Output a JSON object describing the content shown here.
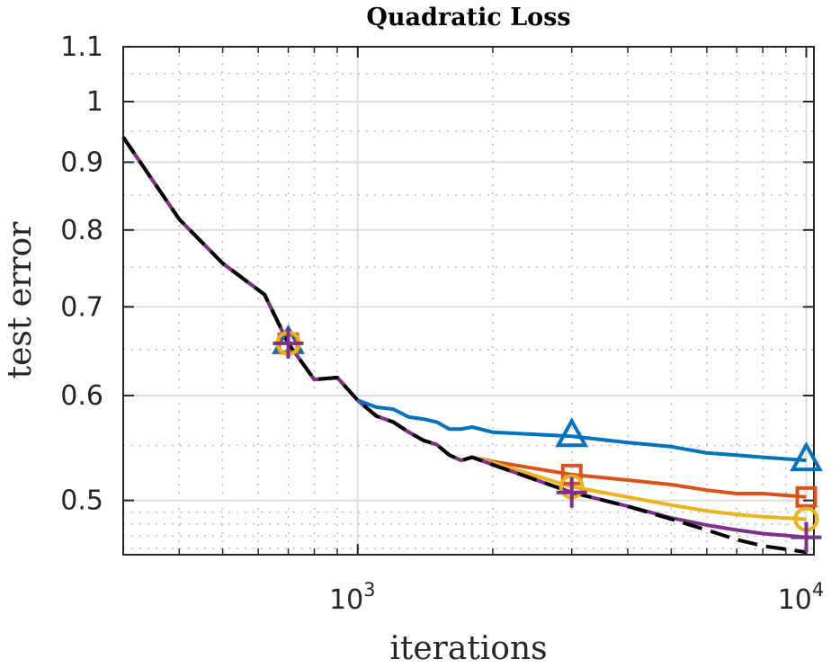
{
  "chart_data": {
    "type": "line",
    "title": "Quadratic Loss",
    "xlabel": "iterations",
    "ylabel": "test error",
    "xscale": "log",
    "yscale": "log",
    "xlim": [
      300,
      10400
    ],
    "ylim": [
      0.455,
      1.1
    ],
    "x_tick_labels": [
      {
        "value": 1000,
        "base": "10",
        "exp": "3"
      },
      {
        "value": 10000,
        "base": "10",
        "exp": "4"
      }
    ],
    "y_ticks": [
      {
        "value": 0.5,
        "label": "0.5"
      },
      {
        "value": 0.6,
        "label": "0.6"
      },
      {
        "value": 0.7,
        "label": "0.7"
      },
      {
        "value": 0.8,
        "label": "0.8"
      },
      {
        "value": 0.9,
        "label": "0.9"
      },
      {
        "value": 1.0,
        "label": "1"
      },
      {
        "value": 1.1,
        "label": "1.1"
      }
    ],
    "grid": true,
    "base_curve": {
      "x": [
        300,
        400,
        500,
        620,
        700,
        800,
        900,
        1000,
        1100,
        1200,
        1300,
        1400,
        1500,
        1600,
        1700,
        1800
      ],
      "y": [
        0.94,
        0.815,
        0.755,
        0.715,
        0.657,
        0.617,
        0.619,
        0.595,
        0.579,
        0.573,
        0.563,
        0.555,
        0.551,
        0.541,
        0.536,
        0.539
      ]
    },
    "series": [
      {
        "name": "series-blue",
        "color": "#0072BD",
        "marker": "triangle",
        "x": [
          1000,
          1100,
          1200,
          1300,
          1400,
          1500,
          1600,
          1700,
          1800,
          2000,
          3000,
          4000,
          5000,
          6000,
          7000,
          8000,
          10000
        ],
        "y": [
          0.595,
          0.588,
          0.586,
          0.578,
          0.576,
          0.573,
          0.566,
          0.566,
          0.568,
          0.563,
          0.559,
          0.553,
          0.549,
          0.543,
          0.541,
          0.539,
          0.536
        ],
        "markers_at": [
          700,
          3000,
          10000
        ]
      },
      {
        "name": "series-red",
        "color": "#D95319",
        "marker": "square",
        "x": [
          1800,
          2000,
          3000,
          4000,
          5000,
          6000,
          7000,
          8000,
          10000
        ],
        "y": [
          0.539,
          0.535,
          0.523,
          0.518,
          0.514,
          0.509,
          0.506,
          0.506,
          0.503
        ],
        "markers_at": [
          700,
          3000,
          10000
        ]
      },
      {
        "name": "series-yellow",
        "color": "#EDB120",
        "marker": "circle",
        "x": [
          1800,
          2000,
          3000,
          4000,
          5000,
          6000,
          7000,
          8000,
          10000
        ],
        "y": [
          0.539,
          0.534,
          0.512,
          0.503,
          0.496,
          0.491,
          0.488,
          0.486,
          0.484
        ],
        "markers_at": [
          700,
          3000,
          10000
        ]
      },
      {
        "name": "series-purple",
        "color": "#7E2F8E",
        "marker": "plus",
        "x": [
          1800,
          2000,
          3000,
          4000,
          5000,
          6000,
          7000,
          8000,
          10000,
          10400
        ],
        "y": [
          0.539,
          0.532,
          0.507,
          0.495,
          0.485,
          0.479,
          0.475,
          0.472,
          0.469,
          0.469
        ],
        "markers_at": [
          700,
          3000,
          10000
        ]
      },
      {
        "name": "series-black-dashed",
        "color": "#000000",
        "marker": "none",
        "dashed": true,
        "x": [
          300,
          400,
          500,
          620,
          700,
          800,
          900,
          1000,
          1100,
          1200,
          1300,
          1400,
          1500,
          1600,
          1700,
          1800,
          2000,
          3000,
          4000,
          5000,
          6000,
          7000,
          8000,
          10000
        ],
        "y": [
          0.94,
          0.815,
          0.755,
          0.715,
          0.657,
          0.617,
          0.619,
          0.595,
          0.579,
          0.573,
          0.563,
          0.555,
          0.551,
          0.541,
          0.536,
          0.539,
          0.532,
          0.507,
          0.495,
          0.484,
          0.475,
          0.467,
          0.462,
          0.457
        ]
      }
    ]
  }
}
